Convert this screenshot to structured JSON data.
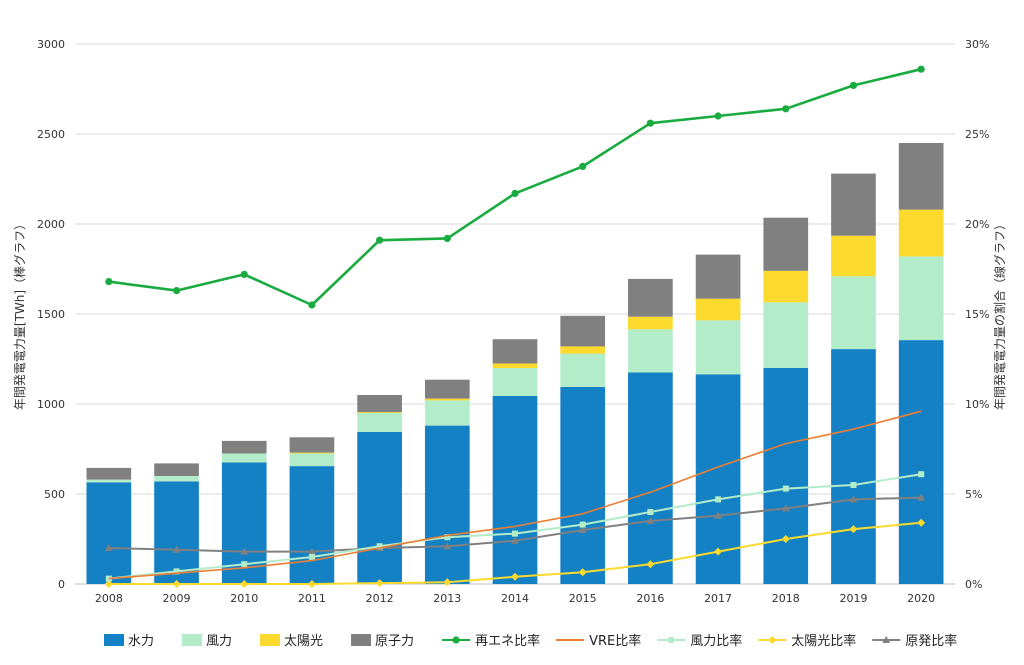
{
  "chart_data": {
    "type": "bar",
    "categories": [
      "2008",
      "2009",
      "2010",
      "2011",
      "2012",
      "2013",
      "2014",
      "2015",
      "2016",
      "2017",
      "2018",
      "2019",
      "2020"
    ],
    "bar_series": [
      {
        "name": "水力",
        "color": "#1581c5",
        "values": [
          565,
          570,
          675,
          655,
          845,
          880,
          1045,
          1095,
          1175,
          1165,
          1200,
          1305,
          1355
        ]
      },
      {
        "name": "風力",
        "color": "#b3ecc9",
        "values": [
          15,
          30,
          50,
          70,
          105,
          140,
          155,
          185,
          240,
          300,
          365,
          405,
          465
        ]
      },
      {
        "name": "太陽光",
        "color": "#fcd92d",
        "values": [
          0,
          0,
          0,
          5,
          5,
          10,
          25,
          40,
          70,
          120,
          175,
          225,
          260
        ]
      },
      {
        "name": "原子力",
        "color": "#808080",
        "values": [
          65,
          70,
          70,
          85,
          95,
          105,
          135,
          170,
          210,
          245,
          295,
          345,
          370
        ]
      }
    ],
    "line_series": [
      {
        "name": "再エネ比率",
        "color": "#1aab40",
        "marker": "circle",
        "values": [
          16.8,
          16.3,
          17.2,
          15.5,
          19.1,
          19.2,
          21.7,
          23.2,
          25.6,
          26.0,
          26.4,
          27.7,
          28.6
        ]
      },
      {
        "name": "VRE比率",
        "color": "#ed7d31",
        "marker": "none",
        "values": [
          0.3,
          0.6,
          0.9,
          1.3,
          2.0,
          2.7,
          3.2,
          3.9,
          5.1,
          6.5,
          7.8,
          8.6,
          9.6
        ]
      },
      {
        "name": "風力比率",
        "color": "#b3ecc9",
        "marker": "square",
        "values": [
          0.3,
          0.7,
          1.1,
          1.5,
          2.1,
          2.6,
          2.8,
          3.3,
          4.0,
          4.7,
          5.3,
          5.5,
          6.1
        ]
      },
      {
        "name": "太陽光比率",
        "color": "#fcd92d",
        "marker": "diamond",
        "values": [
          0.0,
          0.0,
          0.0,
          0.0,
          0.05,
          0.1,
          0.4,
          0.65,
          1.1,
          1.8,
          2.5,
          3.05,
          3.4
        ]
      },
      {
        "name": "原発比率",
        "color": "#808080",
        "marker": "triangle",
        "values": [
          2.0,
          1.9,
          1.8,
          1.8,
          2.0,
          2.1,
          2.4,
          3.0,
          3.5,
          3.8,
          4.2,
          4.7,
          4.8
        ]
      }
    ],
    "y_left": {
      "label": "年間発電電力量[TWh]（棒グラフ）",
      "min": 0,
      "max": 3000,
      "ticks": [
        "0",
        "500",
        "1000",
        "1500",
        "2000",
        "2500",
        "3000"
      ]
    },
    "y_right": {
      "label": "年間発電電力量の割合（線グラフ）",
      "min": 0,
      "max": 30,
      "ticks": [
        "0%",
        "5%",
        "10%",
        "15%",
        "20%",
        "25%",
        "30%"
      ]
    },
    "grid": true,
    "legend_position": "bottom"
  }
}
